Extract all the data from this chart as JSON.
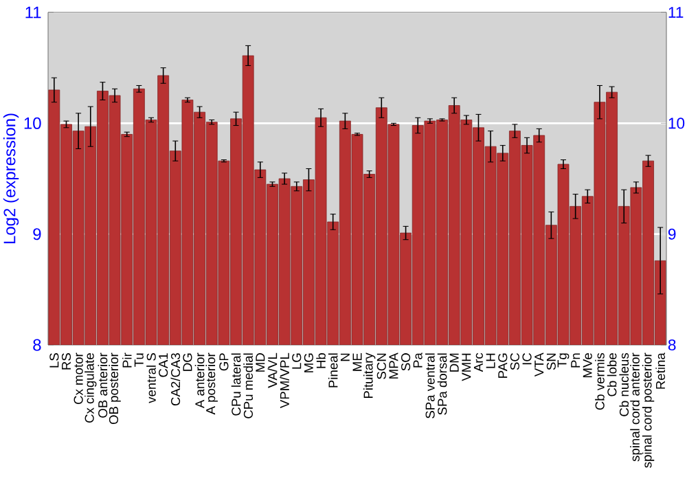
{
  "chart_data": {
    "type": "bar",
    "ylabel": "Log2 (expression)",
    "categories": [
      "LS",
      "RS",
      "Cx motor",
      "Cx cingulate",
      "OB anterior",
      "OB posterior",
      "Pir",
      "Tu",
      "ventral S",
      "CA1",
      "CA2/CA3",
      "DG",
      "A anterior",
      "A posterior",
      "GP",
      "CPu lateral",
      "CPu medial",
      "MD",
      "VA/VL",
      "VPM/VPL",
      "LG",
      "MG",
      "Hb",
      "Pineal",
      "N",
      "ME",
      "Pituitary",
      "SCN",
      "MPA",
      "SO",
      "Pa",
      "SPa ventral",
      "SPa dorsal",
      "DM",
      "VMH",
      "Arc",
      "LH",
      "PAG",
      "SC",
      "IC",
      "VTA",
      "SN",
      "Tg",
      "Pn",
      "MVe",
      "Cb vermis",
      "Cb lobe",
      "Cb nucleus",
      "spinal cord anterior",
      "spinal cord posterior",
      "Retina"
    ],
    "values": [
      10.3,
      9.99,
      9.93,
      9.97,
      10.29,
      10.25,
      9.9,
      10.31,
      10.03,
      10.43,
      9.75,
      10.21,
      10.1,
      10.01,
      9.66,
      10.04,
      10.61,
      9.58,
      9.45,
      9.5,
      9.43,
      9.49,
      10.05,
      9.11,
      10.02,
      9.9,
      9.54,
      10.14,
      9.99,
      9.01,
      9.98,
      10.02,
      10.03,
      10.16,
      10.03,
      9.96,
      9.79,
      9.73,
      9.93,
      9.8,
      9.89,
      9.08,
      9.63,
      9.25,
      9.34,
      10.19,
      10.28,
      9.25,
      9.42,
      9.66,
      8.76
    ],
    "errors": [
      0.11,
      0.03,
      0.16,
      0.18,
      0.08,
      0.06,
      0.02,
      0.03,
      0.02,
      0.07,
      0.09,
      0.02,
      0.05,
      0.02,
      0.01,
      0.06,
      0.09,
      0.07,
      0.02,
      0.05,
      0.04,
      0.1,
      0.08,
      0.07,
      0.07,
      0.01,
      0.03,
      0.09,
      0.01,
      0.06,
      0.07,
      0.02,
      0.01,
      0.07,
      0.04,
      0.12,
      0.14,
      0.07,
      0.06,
      0.07,
      0.06,
      0.12,
      0.04,
      0.11,
      0.06,
      0.15,
      0.05,
      0.15,
      0.05,
      0.05,
      0.3
    ],
    "color": "#b83232",
    "ylim": [
      8,
      11
    ],
    "yticks": [
      8,
      9,
      10,
      11
    ],
    "y2lim": [
      8,
      11
    ],
    "y2ticks": [
      8,
      9,
      10,
      11
    ],
    "grid": "y"
  }
}
